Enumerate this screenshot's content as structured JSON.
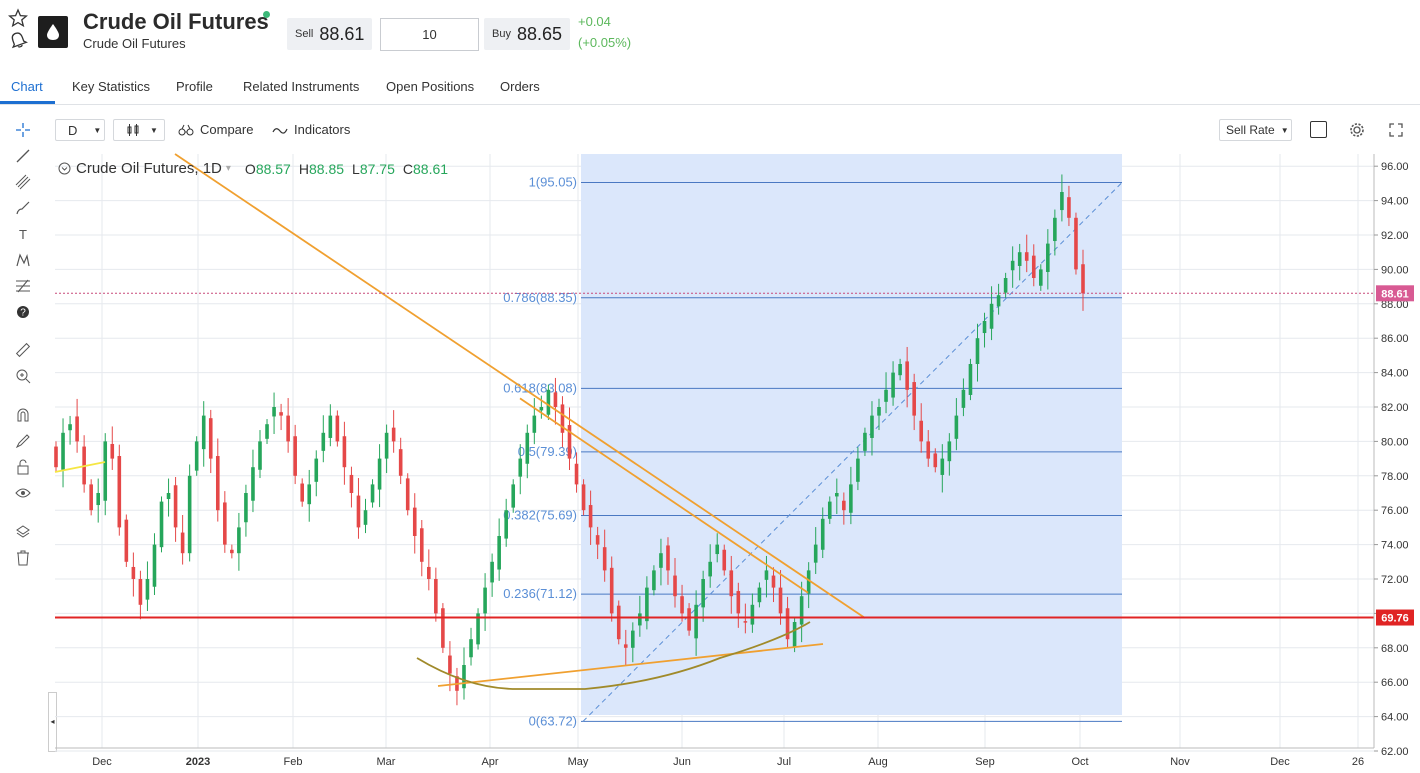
{
  "header": {
    "title": "Crude Oil Futures",
    "subtitle": "Crude Oil Futures",
    "sell_label": "Sell",
    "sell_value": "88.61",
    "quantity": "10",
    "buy_label": "Buy",
    "buy_value": "88.65",
    "change_abs": "+0.04",
    "change_pct": "(+0.05%)",
    "icons": [
      "star-icon",
      "bell-icon",
      "oil-barrel-icon"
    ],
    "online_color": "#3cb878"
  },
  "tabs": [
    {
      "label": "Chart",
      "active": true
    },
    {
      "label": "Key Statistics"
    },
    {
      "label": "Profile"
    },
    {
      "label": "Related Instruments"
    },
    {
      "label": "Open Positions"
    },
    {
      "label": "Orders"
    }
  ],
  "toolbar": {
    "interval": "D",
    "compare": "Compare",
    "indicators": "Indicators",
    "rate_type": "Sell Rate"
  },
  "legend": {
    "name": "Crude Oil Futures, 1D",
    "o_label": "O",
    "o": "88.57",
    "h_label": "H",
    "h": "88.85",
    "l_label": "L",
    "l": "87.75",
    "c_label": "C",
    "c": "88.61"
  },
  "chart_data": {
    "type": "candlestick",
    "y_ticks": [
      "96.00",
      "94.00",
      "92.00",
      "90.00",
      "88.00",
      "86.00",
      "84.00",
      "82.00",
      "80.00",
      "78.00",
      "76.00",
      "74.00",
      "72.00",
      "70.00",
      "68.00",
      "66.00",
      "64.00",
      "62.00"
    ],
    "x_ticks": [
      "Dec",
      "2023",
      "Feb",
      "Mar",
      "Apr",
      "May",
      "Jun",
      "Jul",
      "Aug",
      "Sep",
      "Oct",
      "Nov",
      "Dec",
      "26"
    ],
    "ylim": [
      62,
      96.5
    ],
    "current_price": "88.61",
    "horizontal_line": "69.76",
    "fib_levels": [
      {
        "label": "1(95.05)",
        "value": 95.05
      },
      {
        "label": "0.786(88.35)",
        "value": 88.35
      },
      {
        "label": "0.618(83.08)",
        "value": 83.08
      },
      {
        "label": "0.5(79.39)",
        "value": 79.39
      },
      {
        "label": "0.382(75.69)",
        "value": 75.69
      },
      {
        "label": "0.236(71.12)",
        "value": 71.12
      },
      {
        "label": "0(63.72)",
        "value": 63.72
      }
    ],
    "close_path": [
      78.5,
      80.5,
      81,
      80,
      77.5,
      76,
      77,
      80,
      79,
      75,
      73,
      72,
      70.5,
      72,
      74,
      76.5,
      77,
      75,
      73.5,
      78,
      80,
      81.5,
      79,
      76,
      74,
      73.5,
      75,
      77,
      78.5,
      80,
      81,
      82,
      81.5,
      80,
      78,
      76.5,
      77.5,
      79,
      80.5,
      81.5,
      80,
      78.5,
      77,
      75,
      76,
      77.5,
      79,
      80.5,
      80,
      78,
      76,
      74.5,
      73,
      72,
      70,
      68,
      66.5,
      65.5,
      67,
      68.5,
      70,
      71.5,
      73,
      74.5,
      76,
      77.5,
      79,
      80.5,
      81.5,
      82,
      83,
      82,
      80.5,
      79,
      77.5,
      76,
      75,
      74,
      72.5,
      70,
      68.5,
      68,
      69,
      70,
      71.5,
      72.5,
      73.5,
      72.5,
      71,
      70,
      69,
      70.5,
      72,
      73,
      74,
      72.5,
      71,
      70,
      69.5,
      70.5,
      71.5,
      72.5,
      71.5,
      70,
      68.5,
      69.5,
      71,
      72.5,
      74,
      75.5,
      76.5,
      77,
      76,
      77.5,
      79,
      80.5,
      81.5,
      82,
      83,
      84,
      84.5,
      83,
      81.5,
      80,
      79,
      78.5,
      79,
      80,
      81.5,
      83,
      84.5,
      86,
      87,
      88,
      88.5,
      89.5,
      90.5,
      91,
      90.5,
      89.5,
      90,
      91.5,
      93,
      94.5,
      93,
      90,
      88.61
    ]
  }
}
